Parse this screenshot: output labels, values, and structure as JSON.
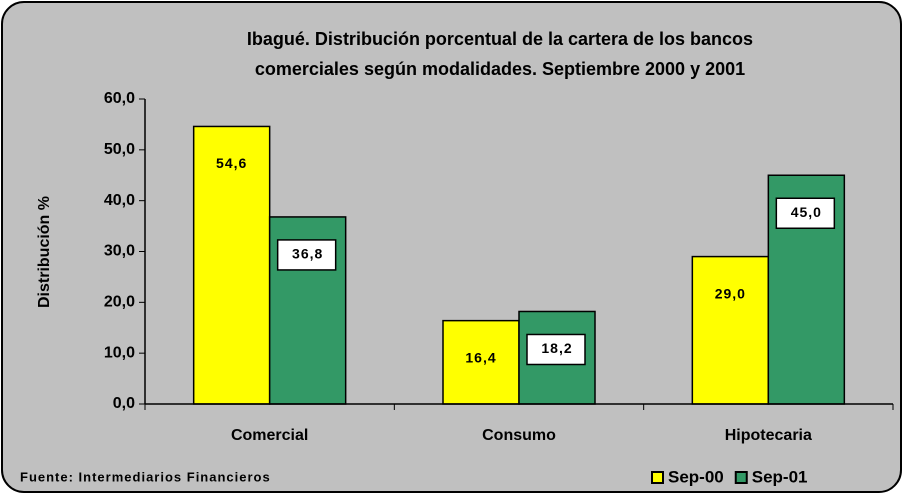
{
  "chart_data": {
    "type": "bar",
    "title": [
      "Ibagué. Distribución porcentual de la cartera de los bancos",
      "comerciales según modalidades. Septiembre 2000 y 2001"
    ],
    "y_label": "Distribución %",
    "source": "Fuente: Intermediarios Financieros",
    "categories": [
      "Comercial",
      "Consumo",
      "Hipotecaria"
    ],
    "series": [
      {
        "name": "Sep-00",
        "color": "#ffff00",
        "values": [
          54.6,
          16.4,
          29.0
        ],
        "value_labels": [
          "54,6",
          "16,4",
          "29,0"
        ]
      },
      {
        "name": "Sep-01",
        "color": "#339966",
        "values": [
          36.8,
          18.2,
          45.0
        ],
        "value_labels": [
          "36,8",
          "18,2",
          "45,0"
        ]
      }
    ],
    "ylim": [
      0,
      60
    ],
    "yticks": [
      {
        "value": 0,
        "label": "0,0"
      },
      {
        "value": 10,
        "label": "10,0"
      },
      {
        "value": 20,
        "label": "20,0"
      },
      {
        "value": 30,
        "label": "30,0"
      },
      {
        "value": 40,
        "label": "40,0"
      },
      {
        "value": 50,
        "label": "50,0"
      },
      {
        "value": 60,
        "label": "60,0"
      }
    ],
    "grid": false,
    "legend": "lower right"
  }
}
